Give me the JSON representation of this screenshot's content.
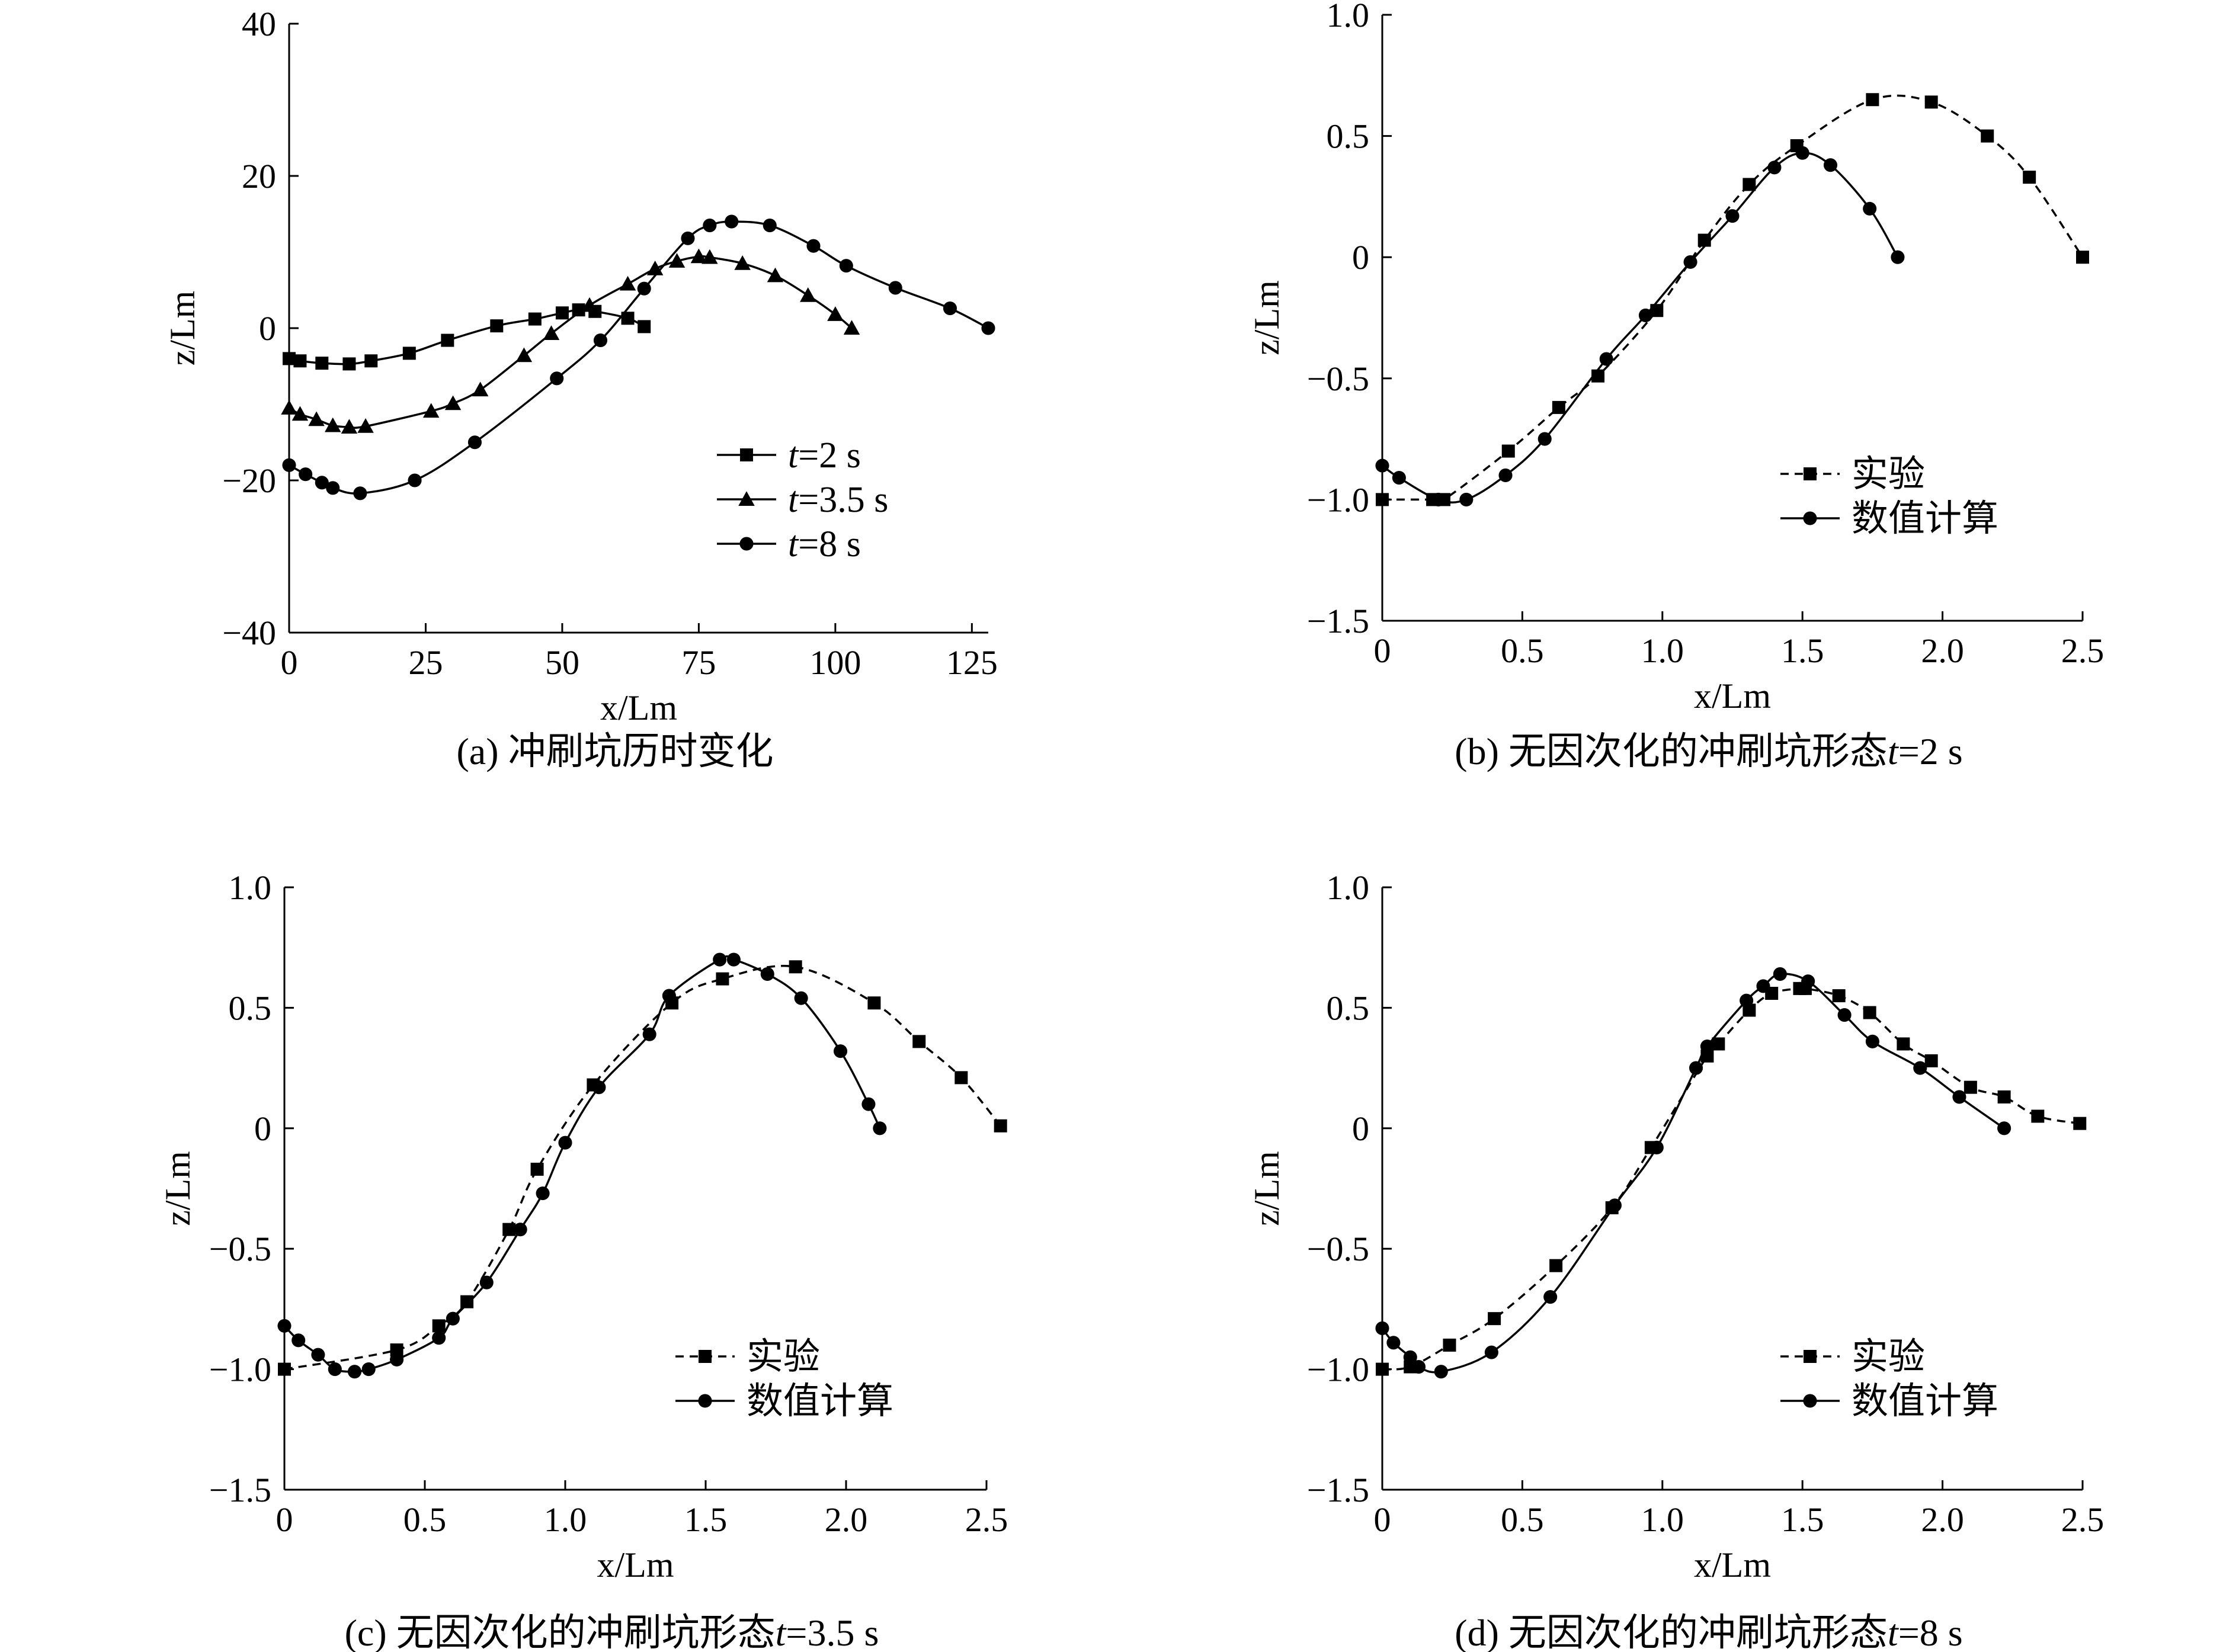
{
  "chart_data": [
    {
      "type": "line",
      "title": "",
      "caption": "(a) 冲刷坑历时变化",
      "xlabel": "x/Lm",
      "ylabel": "z/Lm",
      "xlim": [
        0,
        128
      ],
      "ylim": [
        -40,
        40
      ],
      "xticks": [
        0,
        25,
        50,
        75,
        100,
        125
      ],
      "yticks": [
        -40,
        -20,
        0,
        20,
        40
      ],
      "xtick_labels": [
        "0",
        "25",
        "50",
        "75",
        "100",
        "125"
      ],
      "ytick_labels": [
        "−40",
        "−20",
        "0",
        "20",
        "40"
      ],
      "legend_position": "center-right",
      "series": [
        {
          "name": "t=2 s",
          "legend_italic": "t",
          "legend_rest": "=2 s",
          "marker": "square",
          "dash": "solid",
          "x": [
            0,
            2,
            6,
            11,
            15,
            22,
            29,
            38,
            45,
            50,
            53,
            56,
            62,
            65
          ],
          "y": [
            -4,
            -4.3,
            -4.6,
            -4.7,
            -4.3,
            -3.3,
            -1.6,
            0.3,
            1.2,
            2,
            2.4,
            2.2,
            1.3,
            0.2
          ]
        },
        {
          "name": "t=3.5 s",
          "legend_italic": "t",
          "legend_rest": "=3.5 s",
          "marker": "triangle",
          "dash": "solid",
          "x": [
            0,
            2,
            5,
            8,
            11,
            14,
            26,
            30,
            35,
            43,
            48,
            55,
            62,
            67,
            71,
            75,
            77,
            83,
            89,
            95,
            100,
            103
          ],
          "y": [
            -10.5,
            -11.3,
            -12,
            -12.8,
            -13,
            -12.9,
            -10.9,
            -9.9,
            -8.1,
            -3.6,
            -0.7,
            3,
            5.8,
            7.8,
            8.8,
            9.4,
            9.3,
            8.5,
            6.9,
            4.3,
            1.8,
            0
          ]
        },
        {
          "name": "t=8 s",
          "legend_italic": "t",
          "legend_rest": "=8 s",
          "marker": "circle",
          "dash": "solid",
          "x": [
            0,
            3,
            6,
            8,
            13,
            23,
            34,
            49,
            57,
            65,
            73,
            77,
            81,
            88,
            96,
            102,
            111,
            121,
            128
          ],
          "y": [
            -18,
            -19.2,
            -20.3,
            -21,
            -21.7,
            -20,
            -15,
            -6.6,
            -1.6,
            5.2,
            11.8,
            13.5,
            14,
            13.5,
            10.8,
            8.2,
            5.3,
            2.6,
            0
          ]
        }
      ]
    },
    {
      "type": "line",
      "title": "",
      "caption_prefix": "(b) 无因次化的冲刷坑形态",
      "caption_italic": "t",
      "caption_suffix": "=2 s",
      "xlabel": "x/Lm",
      "ylabel": "z/Lm",
      "xlim": [
        0,
        2.5
      ],
      "ylim": [
        -1.5,
        1.0
      ],
      "xticks": [
        0,
        0.5,
        1.0,
        1.5,
        2.0,
        2.5
      ],
      "yticks": [
        -1.5,
        -1.0,
        -0.5,
        0,
        0.5,
        1.0
      ],
      "xtick_labels": [
        "0",
        "0.5",
        "1.0",
        "1.5",
        "2.0",
        "2.5"
      ],
      "ytick_labels": [
        "−1.5",
        "−1.0",
        "−0.5",
        "0",
        "0.5",
        "1.0"
      ],
      "legend_position": "lower-right",
      "series": [
        {
          "name": "实验",
          "marker": "square",
          "dash": "dashed",
          "x": [
            0,
            0.18,
            0.22,
            0.45,
            0.63,
            0.77,
            0.98,
            1.15,
            1.31,
            1.48,
            1.75,
            1.96,
            2.16,
            2.31,
            2.5
          ],
          "y": [
            -1.0,
            -1.0,
            -1.0,
            -0.8,
            -0.62,
            -0.49,
            -0.22,
            0.07,
            0.3,
            0.46,
            0.65,
            0.64,
            0.5,
            0.33,
            0
          ]
        },
        {
          "name": "数值计算",
          "marker": "circle",
          "dash": "solid",
          "x": [
            0,
            0.06,
            0.2,
            0.3,
            0.44,
            0.58,
            0.8,
            0.94,
            1.1,
            1.25,
            1.4,
            1.5,
            1.6,
            1.74,
            1.84
          ],
          "y": [
            -0.86,
            -0.91,
            -1.0,
            -1.0,
            -0.9,
            -0.75,
            -0.42,
            -0.24,
            -0.02,
            0.17,
            0.37,
            0.43,
            0.38,
            0.2,
            0
          ]
        }
      ]
    },
    {
      "type": "line",
      "title": "",
      "caption_prefix": "(c) 无因次化的冲刷坑形态",
      "caption_italic": "t",
      "caption_suffix": "=3.5 s",
      "xlabel": "x/Lm",
      "ylabel": "z/Lm",
      "xlim": [
        0,
        2.5
      ],
      "ylim": [
        -1.5,
        1.0
      ],
      "xticks": [
        0,
        0.5,
        1.0,
        1.5,
        2.0,
        2.5
      ],
      "yticks": [
        -1.5,
        -1.0,
        -0.5,
        0,
        0.5,
        1.0
      ],
      "xtick_labels": [
        "0",
        "0.5",
        "1.0",
        "1.5",
        "2.0",
        "2.5"
      ],
      "ytick_labels": [
        "−1.5",
        "−1.0",
        "−0.5",
        "0",
        "0.5",
        "1.0"
      ],
      "legend_position": "lower-right",
      "series": [
        {
          "name": "实验",
          "marker": "square",
          "dash": "dashed",
          "x": [
            0,
            0.4,
            0.55,
            0.65,
            0.8,
            0.9,
            1.1,
            1.38,
            1.56,
            1.82,
            2.1,
            2.26,
            2.41,
            2.55
          ],
          "y": [
            -1.0,
            -0.92,
            -0.82,
            -0.72,
            -0.42,
            -0.17,
            0.18,
            0.52,
            0.62,
            0.67,
            0.52,
            0.36,
            0.21,
            0.01
          ]
        },
        {
          "name": "数值计算",
          "marker": "circle",
          "dash": "solid",
          "x": [
            0,
            0.05,
            0.12,
            0.18,
            0.25,
            0.3,
            0.4,
            0.55,
            0.6,
            0.72,
            0.84,
            0.92,
            1.0,
            1.12,
            1.3,
            1.37,
            1.55,
            1.6,
            1.72,
            1.84,
            1.98,
            2.08,
            2.12
          ],
          "y": [
            -0.82,
            -0.88,
            -0.94,
            -1.0,
            -1.01,
            -1.0,
            -0.96,
            -0.87,
            -0.79,
            -0.64,
            -0.42,
            -0.27,
            -0.06,
            0.17,
            0.39,
            0.55,
            0.7,
            0.7,
            0.64,
            0.54,
            0.32,
            0.1,
            0
          ]
        }
      ]
    },
    {
      "type": "line",
      "title": "",
      "caption_prefix": "(d) 无因次化的冲刷坑形态",
      "caption_italic": "t",
      "caption_suffix": "=8 s",
      "xlabel": "x/Lm",
      "ylabel": "z/Lm",
      "xlim": [
        0,
        2.5
      ],
      "ylim": [
        -1.5,
        1.0
      ],
      "xticks": [
        0,
        0.5,
        1.0,
        1.5,
        2.0,
        2.5
      ],
      "yticks": [
        -1.5,
        -1.0,
        -0.5,
        0,
        0.5,
        1.0
      ],
      "xtick_labels": [
        "0",
        "0.5",
        "1.0",
        "1.5",
        "2.0",
        "2.5"
      ],
      "ytick_labels": [
        "−1.5",
        "−1.0",
        "−0.5",
        "0",
        "0.5",
        "1.0"
      ],
      "legend_position": "lower-right",
      "series": [
        {
          "name": "实验",
          "marker": "square",
          "dash": "dashed",
          "x": [
            0,
            0.1,
            0.24,
            0.4,
            0.62,
            0.82,
            0.96,
            1.16,
            1.2,
            1.31,
            1.39,
            1.49,
            1.51,
            1.63,
            1.74,
            1.86,
            1.96,
            2.1,
            2.22,
            2.34,
            2.49
          ],
          "y": [
            -1.0,
            -0.99,
            -0.9,
            -0.79,
            -0.57,
            -0.33,
            -0.08,
            0.3,
            0.35,
            0.49,
            0.56,
            0.58,
            0.58,
            0.55,
            0.48,
            0.35,
            0.28,
            0.17,
            0.13,
            0.05,
            0.02
          ]
        },
        {
          "name": "数值计算",
          "marker": "circle",
          "dash": "solid",
          "x": [
            0,
            0.04,
            0.1,
            0.13,
            0.21,
            0.39,
            0.6,
            0.83,
            0.98,
            1.12,
            1.16,
            1.3,
            1.36,
            1.42,
            1.52,
            1.65,
            1.75,
            1.92,
            2.06,
            2.22
          ],
          "y": [
            -0.83,
            -0.89,
            -0.95,
            -0.99,
            -1.01,
            -0.93,
            -0.7,
            -0.32,
            -0.08,
            0.25,
            0.34,
            0.53,
            0.59,
            0.64,
            0.61,
            0.47,
            0.36,
            0.25,
            0.13,
            0
          ]
        }
      ]
    }
  ]
}
